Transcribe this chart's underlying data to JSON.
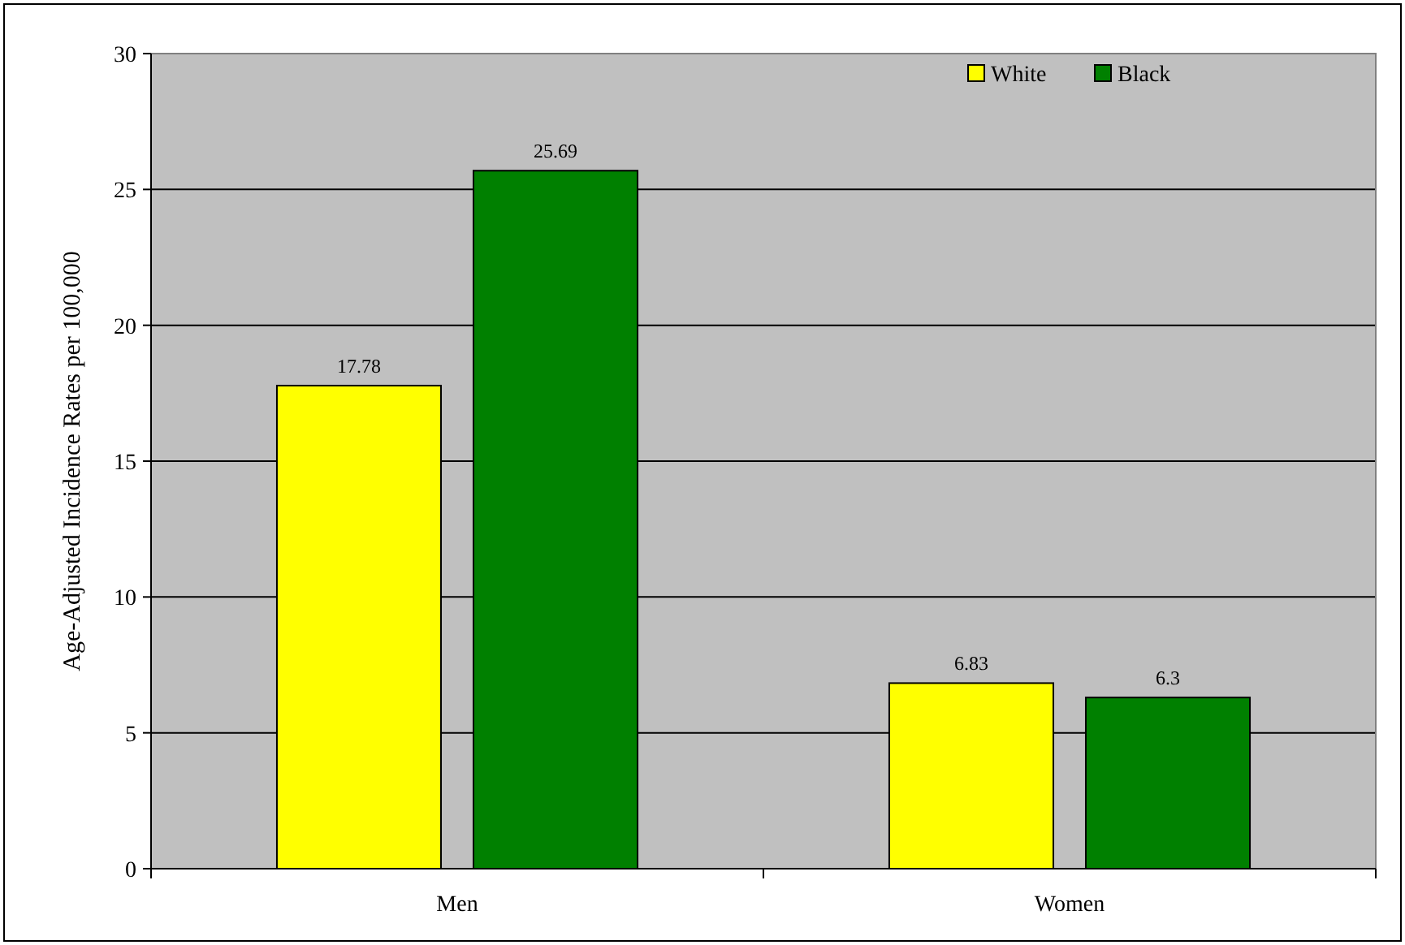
{
  "chart_data": {
    "type": "bar",
    "ylabel": "Age-Adjusted Incidence Rates per 100,000",
    "categories": [
      "Men",
      "Women"
    ],
    "series": [
      {
        "name": "White",
        "color": "#ffff00",
        "values": [
          17.78,
          6.83
        ]
      },
      {
        "name": "Black",
        "color": "#008000",
        "values": [
          25.69,
          6.3
        ]
      }
    ],
    "ylim": [
      0,
      30
    ],
    "yticks": [
      0,
      5,
      10,
      15,
      20,
      25,
      30
    ],
    "grid": "y",
    "legend": "top right",
    "data_labels": true
  }
}
